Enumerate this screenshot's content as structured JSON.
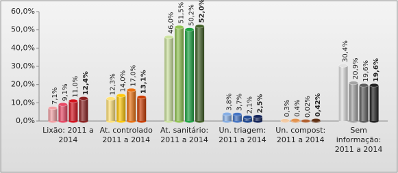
{
  "chart_data": {
    "type": "bar",
    "categories": [
      [
        "Lixão: 2011 a",
        "2014"
      ],
      [
        "At. controlado",
        "2011 a 2014"
      ],
      [
        "At. sanitário:",
        "2011 a 2014"
      ],
      [
        "Un. triagem:",
        "2011 a 2014"
      ],
      [
        "Un. compost:",
        "2011 a 2014"
      ],
      [
        "Sem",
        "informação:",
        "2011 a 2014"
      ]
    ],
    "series": [
      {
        "colors": [
          "#f2a0a4",
          "#ffe27a",
          "#cde3a0",
          "#86aee4",
          "#f2c9a2",
          "#e2e2e2"
        ],
        "values": [
          7.1,
          12.3,
          46.0,
          3.8,
          0.3,
          30.4
        ],
        "value_labels": [
          "7,1%",
          "12,3%",
          "46,0%",
          "3,8%",
          "0,3%",
          "30,4%"
        ]
      },
      {
        "colors": [
          "#e84a66",
          "#ffc80a",
          "#92c454",
          "#4474c4",
          "#e2924e",
          "#a4a4a4"
        ],
        "values": [
          9.1,
          14.0,
          51.5,
          3.7,
          0.4,
          20.9
        ],
        "value_labels": [
          "9,1%",
          "14,0%",
          "51,5%",
          "3,7%",
          "0,4%",
          "20,9%"
        ]
      },
      {
        "colors": [
          "#d4121e",
          "#ea7212",
          "#1fa444",
          "#1f4892",
          "#b06030",
          "#5e5e5e"
        ],
        "values": [
          11.0,
          17.0,
          50.2,
          2.1,
          0.02,
          19.6
        ],
        "value_labels": [
          "11,0%",
          "17,0%",
          "50,2%",
          "2,1%",
          "0,02%",
          "19,6%"
        ]
      },
      {
        "colors": [
          "#8c2222",
          "#cc3e04",
          "#44622a",
          "#122258",
          "#603014",
          "#222222"
        ],
        "values": [
          12.4,
          13.1,
          52.0,
          2.5,
          0.42,
          19.6
        ],
        "value_labels": [
          "12,4%",
          "13,1%",
          "52,0%",
          "2,5%",
          "0,42%",
          "19,6%"
        ]
      }
    ],
    "ylim": [
      0,
      60
    ],
    "yticks": [
      {
        "value": 0,
        "label": "0,0%"
      },
      {
        "value": 10,
        "label": "10,0%"
      },
      {
        "value": 20,
        "label": "20,0%"
      },
      {
        "value": 30,
        "label": "30,0%"
      },
      {
        "value": 40,
        "label": "40,0%"
      },
      {
        "value": 50,
        "label": "50,0%"
      },
      {
        "value": 60,
        "label": "60,0%"
      }
    ]
  }
}
